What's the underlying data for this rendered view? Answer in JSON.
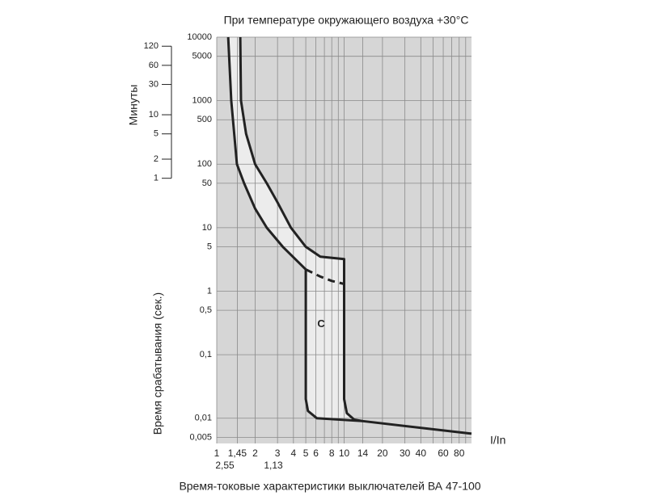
{
  "chart_data": {
    "type": "line",
    "title": "При температуре окружающего воздуха +30°С",
    "caption": "Время-токовые характеристики выключателей ВА 47-100",
    "xlabel": "I/In",
    "ylabel": "Время срабатывания (сек.)",
    "y2label": "Минуты",
    "xlog": true,
    "ylog": true,
    "grid": true,
    "xlim": [
      1,
      100
    ],
    "xticks": [
      1,
      {
        "value": 1.45,
        "label": "1,45"
      },
      2,
      3,
      4,
      5,
      6,
      8,
      10,
      14,
      20,
      30,
      40,
      60,
      80
    ],
    "xminor": [
      7,
      9,
      50,
      70,
      90
    ],
    "notes": [
      "2,55",
      "1,13"
    ],
    "ylim": [
      0.004,
      10000
    ],
    "yticks": [
      10000,
      5000,
      1000,
      500,
      100,
      50,
      10,
      5,
      1,
      {
        "value": 0.5,
        "label": "0,5"
      },
      {
        "value": 0.1,
        "label": "0,1"
      },
      {
        "value": 0.01,
        "label": "0,01"
      },
      {
        "value": 0.005,
        "label": "0,005"
      }
    ],
    "y2lim": [
      6.67e-05,
      166.67
    ],
    "y2ticks": [
      120,
      60,
      30,
      10,
      5,
      2,
      1
    ],
    "color": "#222222",
    "band_color": "#ececec",
    "background": "#d6d6d6",
    "annotations": [
      {
        "text": "C",
        "x": 6.6,
        "y": 0.3
      }
    ],
    "series": [
      {
        "color": "#222222",
        "x": [
          1.53,
          1.55,
          1.7,
          2.0,
          2.47,
          3.0,
          3.82,
          5,
          6.5,
          10,
          10,
          10.5,
          12,
          14,
          100
        ],
        "values": [
          10000,
          1000,
          300,
          100,
          50,
          25,
          10,
          5,
          3.5,
          3.2,
          0.02,
          0.012,
          0.0095,
          0.009,
          0.0057
        ]
      },
      {
        "color": "#222222",
        "x": [
          1.23,
          1.3,
          1.44,
          1.64,
          2.0,
          2.47,
          3.3,
          5,
          5,
          5.2,
          6.1,
          14
        ],
        "values": [
          10000,
          1000,
          100,
          50,
          20,
          10,
          5,
          2.2,
          0.02,
          0.013,
          0.01,
          0.009
        ]
      },
      {
        "color": "#222222",
        "dashed": true,
        "x": [
          5,
          6.5,
          8,
          10
        ],
        "values": [
          2.2,
          1.7,
          1.45,
          1.3
        ]
      }
    ]
  }
}
